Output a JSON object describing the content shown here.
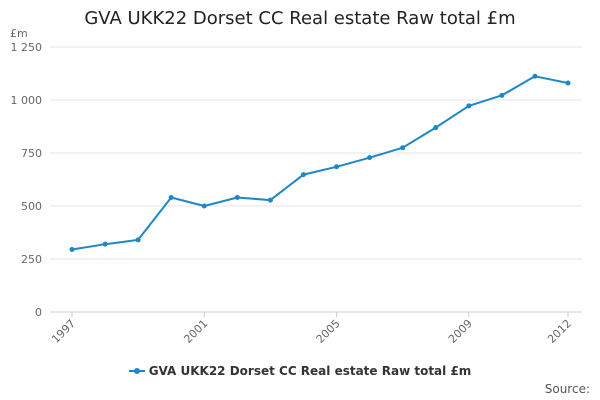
{
  "colors": {
    "series": "#1f86c8",
    "grid": "#e6e6e6",
    "axis_text": "#666666"
  },
  "legend": {
    "label": "GVA UKK22 Dorset CC Real estate Raw total £m"
  },
  "source": {
    "label": "Source:"
  },
  "chart_data": {
    "type": "line",
    "title": "GVA UKK22 Dorset CC Real estate Raw total £m",
    "ylabel": "£m",
    "xlabel": "",
    "x": [
      1997,
      1998,
      1999,
      2000,
      2001,
      2002,
      2003,
      2004,
      2005,
      2006,
      2007,
      2008,
      2009,
      2010,
      2011,
      2012
    ],
    "xticks": [
      {
        "value": 1997,
        "label": "1997"
      },
      {
        "value": 2001,
        "label": "2001"
      },
      {
        "value": 2005,
        "label": "2005"
      },
      {
        "value": 2009,
        "label": "2009"
      },
      {
        "value": 2012,
        "label": "2012"
      }
    ],
    "yticks": [
      {
        "value": 0,
        "label": "0"
      },
      {
        "value": 250,
        "label": "250"
      },
      {
        "value": 500,
        "label": "500"
      },
      {
        "value": 750,
        "label": "750"
      },
      {
        "value": 1000,
        "label": "1 000"
      },
      {
        "value": 1250,
        "label": "1 250"
      }
    ],
    "ylim": [
      0,
      1250
    ],
    "grid": true,
    "legend_position": "bottom",
    "series": [
      {
        "name": "GVA UKK22 Dorset CC Real estate Raw total £m",
        "values": [
          295,
          320,
          340,
          540,
          500,
          540,
          528,
          648,
          685,
          728,
          775,
          870,
          972,
          1022,
          1112,
          1080
        ]
      }
    ]
  }
}
